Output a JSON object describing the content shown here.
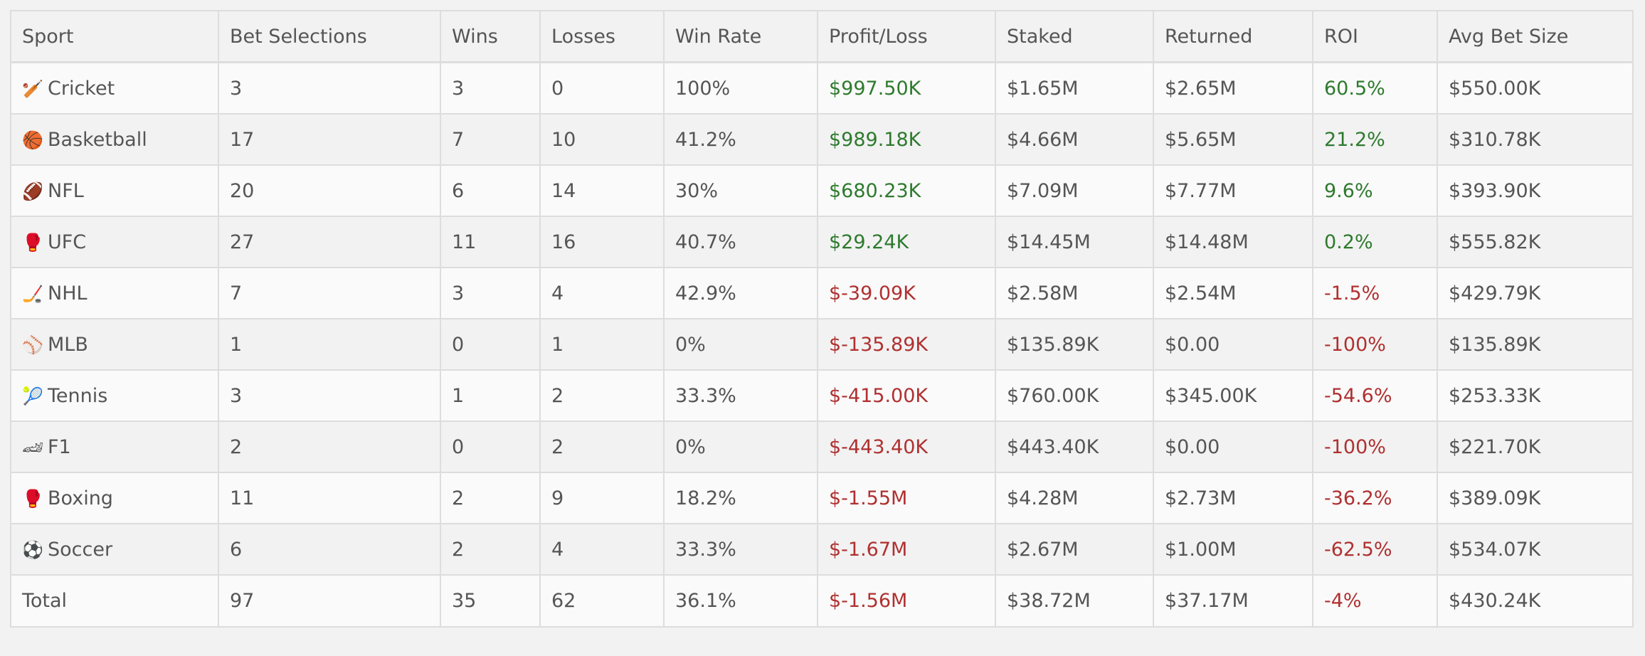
{
  "colors": {
    "positive": "#2e7a2e",
    "negative": "#b03030"
  },
  "columns": [
    "Sport",
    "Bet Selections",
    "Wins",
    "Losses",
    "Win Rate",
    "Profit/Loss",
    "Staked",
    "Returned",
    "ROI",
    "Avg Bet Size"
  ],
  "rows": [
    {
      "icon": "cricket-bat-icon",
      "glyph": "🏏",
      "sport": "Cricket",
      "selections": "3",
      "wins": "3",
      "losses": "0",
      "win_rate": "100%",
      "profit_loss": "$997.50K",
      "staked": "$1.65M",
      "returned": "$2.65M",
      "roi": "60.5%",
      "avg_bet": "$550.00K",
      "sign": "pos"
    },
    {
      "icon": "basketball-icon",
      "glyph": "🏀",
      "sport": "Basketball",
      "selections": "17",
      "wins": "7",
      "losses": "10",
      "win_rate": "41.2%",
      "profit_loss": "$989.18K",
      "staked": "$4.66M",
      "returned": "$5.65M",
      "roi": "21.2%",
      "avg_bet": "$310.78K",
      "sign": "pos"
    },
    {
      "icon": "american-football-icon",
      "glyph": "🏈",
      "sport": "NFL",
      "selections": "20",
      "wins": "6",
      "losses": "14",
      "win_rate": "30%",
      "profit_loss": "$680.23K",
      "staked": "$7.09M",
      "returned": "$7.77M",
      "roi": "9.6%",
      "avg_bet": "$393.90K",
      "sign": "pos"
    },
    {
      "icon": "boxing-glove-icon",
      "glyph": "🥊",
      "sport": "UFC",
      "selections": "27",
      "wins": "11",
      "losses": "16",
      "win_rate": "40.7%",
      "profit_loss": "$29.24K",
      "staked": "$14.45M",
      "returned": "$14.48M",
      "roi": "0.2%",
      "avg_bet": "$555.82K",
      "sign": "pos"
    },
    {
      "icon": "hockey-stick-icon",
      "glyph": "🏒",
      "sport": "NHL",
      "selections": "7",
      "wins": "3",
      "losses": "4",
      "win_rate": "42.9%",
      "profit_loss": "$-39.09K",
      "staked": "$2.58M",
      "returned": "$2.54M",
      "roi": "-1.5%",
      "avg_bet": "$429.79K",
      "sign": "neg"
    },
    {
      "icon": "baseball-icon",
      "glyph": "⚾",
      "sport": "MLB",
      "selections": "1",
      "wins": "0",
      "losses": "1",
      "win_rate": "0%",
      "profit_loss": "$-135.89K",
      "staked": "$135.89K",
      "returned": "$0.00",
      "roi": "-100%",
      "avg_bet": "$135.89K",
      "sign": "neg"
    },
    {
      "icon": "tennis-ball-icon",
      "glyph": "🎾",
      "sport": "Tennis",
      "selections": "3",
      "wins": "1",
      "losses": "2",
      "win_rate": "33.3%",
      "profit_loss": "$-415.00K",
      "staked": "$760.00K",
      "returned": "$345.00K",
      "roi": "-54.6%",
      "avg_bet": "$253.33K",
      "sign": "neg"
    },
    {
      "icon": "race-car-icon",
      "glyph": "🏎",
      "sport": "F1",
      "selections": "2",
      "wins": "0",
      "losses": "2",
      "win_rate": "0%",
      "profit_loss": "$-443.40K",
      "staked": "$443.40K",
      "returned": "$0.00",
      "roi": "-100%",
      "avg_bet": "$221.70K",
      "sign": "neg"
    },
    {
      "icon": "boxing-glove-icon",
      "glyph": "🥊",
      "sport": "Boxing",
      "selections": "11",
      "wins": "2",
      "losses": "9",
      "win_rate": "18.2%",
      "profit_loss": "$-1.55M",
      "staked": "$4.28M",
      "returned": "$2.73M",
      "roi": "-36.2%",
      "avg_bet": "$389.09K",
      "sign": "neg"
    },
    {
      "icon": "soccer-ball-icon",
      "glyph": "⚽",
      "sport": "Soccer",
      "selections": "6",
      "wins": "2",
      "losses": "4",
      "win_rate": "33.3%",
      "profit_loss": "$-1.67M",
      "staked": "$2.67M",
      "returned": "$1.00M",
      "roi": "-62.5%",
      "avg_bet": "$534.07K",
      "sign": "neg"
    }
  ],
  "total": {
    "sport": "Total",
    "selections": "97",
    "wins": "35",
    "losses": "62",
    "win_rate": "36.1%",
    "profit_loss": "$-1.56M",
    "staked": "$38.72M",
    "returned": "$37.17M",
    "roi": "-4%",
    "avg_bet": "$430.24K",
    "sign": "neg"
  }
}
